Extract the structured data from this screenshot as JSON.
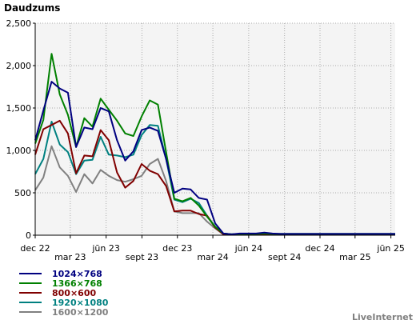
{
  "chart_data": {
    "type": "line",
    "title": "Daudzums",
    "xlabel": "",
    "ylabel": "",
    "ylim": [
      0,
      2500
    ],
    "y_ticks": [
      "0",
      "500",
      "1,000",
      "1,500",
      "2,000",
      "2,500"
    ],
    "x_ticks_top_row": [
      "dec 22",
      "jūn 23",
      "dec 23",
      "jūn 24",
      "dec 24",
      "jūn 25"
    ],
    "x_ticks_bottom_row": [
      "mar 23",
      "sept 23",
      "mar 24",
      "sept 24",
      "mar 25"
    ],
    "grid": true,
    "legend_position": "bottom-left",
    "x": [
      "2022-12-01",
      "2022-12-22",
      "2023-01-12",
      "2023-02-02",
      "2023-02-23",
      "2023-03-16",
      "2023-04-06",
      "2023-04-27",
      "2023-05-18",
      "2023-06-08",
      "2023-06-29",
      "2023-07-20",
      "2023-08-10",
      "2023-08-31",
      "2023-09-21",
      "2023-10-12",
      "2023-11-02",
      "2023-11-23",
      "2023-12-14",
      "2024-01-04",
      "2024-01-25",
      "2024-02-15",
      "2024-03-07",
      "2024-03-28",
      "2024-04-18",
      "2024-05-09",
      "2024-05-30",
      "2024-06-20",
      "2024-07-11",
      "2024-08-01",
      "2024-08-22",
      "2024-09-12",
      "2024-10-03",
      "2024-10-24",
      "2024-11-14",
      "2024-12-05",
      "2024-12-26",
      "2025-01-16",
      "2025-02-06",
      "2025-02-27",
      "2025-03-20",
      "2025-04-10",
      "2025-05-01",
      "2025-05-22",
      "2025-06-12"
    ],
    "series": [
      {
        "name": "1024×768",
        "color": "#000080",
        "values": [
          1120,
          1470,
          1810,
          1730,
          1680,
          1040,
          1270,
          1250,
          1500,
          1460,
          1120,
          880,
          990,
          1240,
          1270,
          1230,
          900,
          500,
          550,
          540,
          440,
          420,
          140,
          20,
          10,
          20,
          20,
          20,
          30,
          20,
          15,
          15,
          15,
          15,
          15,
          15,
          15,
          15,
          15,
          15,
          15,
          15,
          15,
          15,
          15
        ]
      },
      {
        "name": "1366×768",
        "color": "#008000",
        "values": [
          1080,
          1360,
          2140,
          1660,
          1420,
          1040,
          1380,
          1280,
          1610,
          1480,
          1350,
          1200,
          1170,
          1400,
          1590,
          1540,
          980,
          430,
          400,
          440,
          350,
          220,
          100,
          20,
          10,
          15,
          15,
          15,
          20,
          15,
          15,
          15,
          15,
          15,
          15,
          15,
          15,
          15,
          15,
          15,
          15,
          15,
          15,
          15,
          15
        ]
      },
      {
        "name": "800×600",
        "color": "#800000",
        "values": [
          950,
          1250,
          1300,
          1350,
          1200,
          730,
          940,
          930,
          1240,
          1120,
          740,
          560,
          640,
          840,
          760,
          720,
          580,
          280,
          290,
          290,
          250,
          230,
          90,
          10,
          5,
          10,
          10,
          10,
          10,
          10,
          10,
          10,
          10,
          10,
          10,
          10,
          10,
          10,
          10,
          10,
          10,
          10,
          10,
          10,
          10
        ]
      },
      {
        "name": "1920×1080",
        "color": "#008080",
        "values": [
          720,
          900,
          1340,
          1070,
          980,
          720,
          880,
          890,
          1160,
          950,
          940,
          920,
          950,
          1180,
          1300,
          1290,
          900,
          420,
          390,
          430,
          380,
          230,
          100,
          20,
          10,
          15,
          15,
          15,
          15,
          15,
          15,
          15,
          15,
          15,
          15,
          15,
          15,
          15,
          15,
          15,
          15,
          15,
          15,
          15,
          15
        ]
      },
      {
        "name": "1600×1200",
        "color": "#808080",
        "values": [
          530,
          680,
          1050,
          800,
          700,
          510,
          720,
          610,
          770,
          700,
          650,
          630,
          660,
          700,
          840,
          900,
          640,
          280,
          260,
          260,
          260,
          160,
          80,
          10,
          5,
          10,
          10,
          10,
          10,
          10,
          10,
          10,
          10,
          10,
          10,
          10,
          10,
          10,
          10,
          10,
          10,
          10,
          10,
          10,
          10
        ]
      }
    ]
  },
  "watermark": "LiveInternet"
}
